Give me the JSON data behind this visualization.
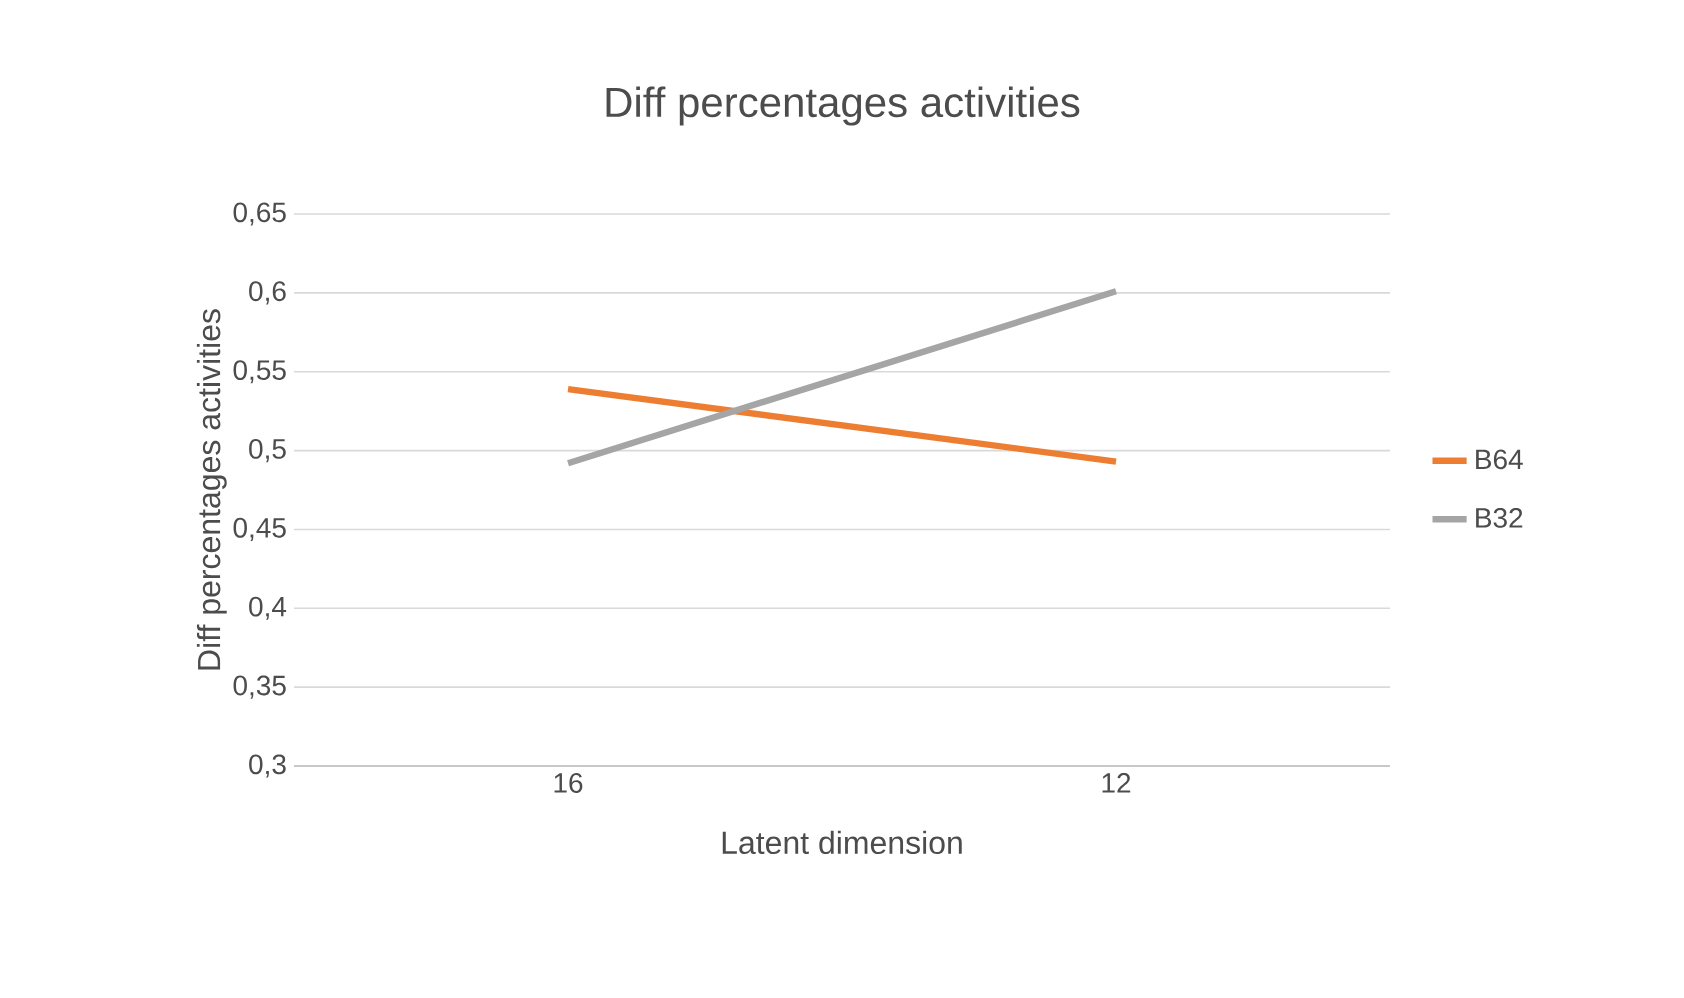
{
  "chart_data": {
    "type": "line",
    "title": "Diff percentages activities",
    "xlabel": "Latent dimension",
    "ylabel": "Diff percentages activities",
    "categories": [
      "16",
      "12"
    ],
    "series": [
      {
        "name": "B64",
        "color": "#ed7d31",
        "values": [
          0.539,
          0.493
        ]
      },
      {
        "name": "B32",
        "color": "#a5a5a5",
        "values": [
          0.492,
          0.601
        ]
      }
    ],
    "ylim": [
      0.3,
      0.65
    ],
    "yticks": [
      {
        "value": 0.3,
        "label": "0,3"
      },
      {
        "value": 0.35,
        "label": "0,35"
      },
      {
        "value": 0.4,
        "label": "0,4"
      },
      {
        "value": 0.45,
        "label": "0,45"
      },
      {
        "value": 0.5,
        "label": "0,5"
      },
      {
        "value": 0.55,
        "label": "0,55"
      },
      {
        "value": 0.6,
        "label": "0,6"
      },
      {
        "value": 0.65,
        "label": "0,65"
      }
    ],
    "grid": "y",
    "legend": "right",
    "marker": "none",
    "line_style": "solid"
  }
}
